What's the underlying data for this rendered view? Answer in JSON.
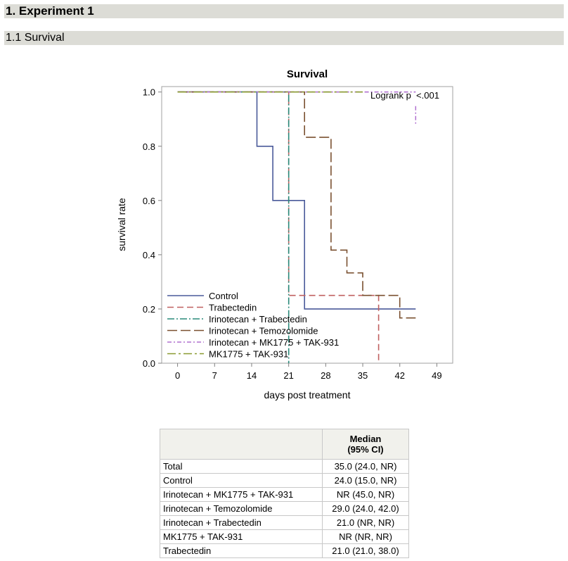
{
  "headings": {
    "section": "1. Experiment 1",
    "subsection": "1.1 Survival"
  },
  "chart_data": {
    "type": "line",
    "style": "step (Kaplan-Meier)",
    "title": "Survival",
    "xlabel": "days post treatment",
    "ylabel": "survival rate",
    "xlim": [
      -3,
      52
    ],
    "ylim": [
      0,
      1.02
    ],
    "xticks": [
      0,
      7,
      14,
      21,
      28,
      35,
      42,
      49
    ],
    "yticks": [
      0.0,
      0.2,
      0.4,
      0.6,
      0.8,
      1.0
    ],
    "annotation": "Logrank p  <.001",
    "legend_position": "bottom-left",
    "series": [
      {
        "name": "Control",
        "color": "#4a5a9a",
        "dash": "solid",
        "points": [
          [
            0,
            1.0
          ],
          [
            15,
            1.0
          ],
          [
            15,
            0.8
          ],
          [
            18,
            0.8
          ],
          [
            18,
            0.6
          ],
          [
            24,
            0.6
          ],
          [
            24,
            0.2
          ],
          [
            45,
            0.2
          ]
        ]
      },
      {
        "name": "Trabectedin",
        "color": "#c06060",
        "dash": "long",
        "points": [
          [
            0,
            1.0
          ],
          [
            21,
            1.0
          ],
          [
            21,
            0.25
          ],
          [
            38,
            0.25
          ],
          [
            38,
            0.0
          ]
        ]
      },
      {
        "name": "Irinotecan + Trabectedin",
        "color": "#2a8a7a",
        "dash": "dashdot",
        "points": [
          [
            0,
            1.0
          ],
          [
            21,
            1.0
          ],
          [
            21,
            0.0
          ]
        ]
      },
      {
        "name": "Irinotecan + Temozolomide",
        "color": "#7a5030",
        "dash": "longlong",
        "points": [
          [
            0,
            1.0
          ],
          [
            24,
            1.0
          ],
          [
            24,
            0.833
          ],
          [
            29,
            0.833
          ],
          [
            29,
            0.417
          ],
          [
            32,
            0.417
          ],
          [
            32,
            0.333
          ],
          [
            35,
            0.333
          ],
          [
            35,
            0.25
          ],
          [
            42,
            0.25
          ],
          [
            42,
            0.167
          ],
          [
            45,
            0.167
          ]
        ]
      },
      {
        "name": "Irinotecan + MK1775 + TAK-931",
        "color": "#b070d0",
        "dash": "dashdotlong",
        "points": [
          [
            0,
            1.0
          ],
          [
            45,
            1.0
          ]
        ]
      },
      {
        "name": "MK1775 + TAK-931",
        "color": "#8a9a30",
        "dash": "longdot",
        "points": [
          [
            0,
            1.0
          ],
          [
            35,
            1.0
          ]
        ]
      }
    ]
  },
  "table": {
    "header": {
      "label": "",
      "value": "Median (95% CI)",
      "value_line1": "Median",
      "value_line2": "(95% CI)"
    },
    "rows": [
      {
        "label": "Total",
        "value": "35.0 (24.0, NR)"
      },
      {
        "label": "Control",
        "value": "24.0 (15.0, NR)"
      },
      {
        "label": "Irinotecan + MK1775 + TAK-931",
        "value": "NR (45.0, NR)"
      },
      {
        "label": "Irinotecan + Temozolomide",
        "value": "29.0 (24.0, 42.0)"
      },
      {
        "label": "Irinotecan + Trabectedin",
        "value": "21.0 (NR, NR)"
      },
      {
        "label": "MK1775 + TAK-931",
        "value": "NR (NR, NR)"
      },
      {
        "label": "Trabectedin",
        "value": "21.0 (21.0, 38.0)"
      }
    ]
  }
}
